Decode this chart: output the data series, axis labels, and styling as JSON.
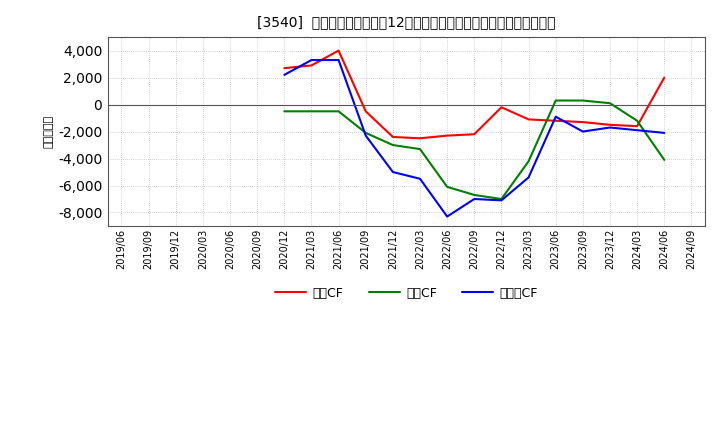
{
  "title": "[3540]  キャッシュフローの12か月移動合計の対前年同期増減額の推移",
  "ylabel": "（百万円）",
  "x_labels": [
    "2019/06",
    "2019/09",
    "2019/12",
    "2020/03",
    "2020/06",
    "2020/09",
    "2020/12",
    "2021/03",
    "2021/06",
    "2021/09",
    "2021/12",
    "2022/03",
    "2022/06",
    "2022/09",
    "2022/12",
    "2023/03",
    "2023/06",
    "2023/09",
    "2023/12",
    "2024/03",
    "2024/06",
    "2024/09"
  ],
  "operating_cf": [
    null,
    null,
    null,
    null,
    null,
    null,
    2700,
    2900,
    4000,
    -500,
    -2400,
    -2500,
    -2300,
    -2200,
    -200,
    -1100,
    -1200,
    -1300,
    -1500,
    -1600,
    2000,
    null
  ],
  "investing_cf": [
    null,
    null,
    null,
    null,
    null,
    null,
    -500,
    -500,
    -500,
    -2100,
    -3000,
    -3300,
    -6100,
    -6700,
    -7000,
    -4200,
    300,
    300,
    100,
    -1200,
    -4100,
    null
  ],
  "free_cf": [
    null,
    null,
    null,
    null,
    null,
    null,
    2200,
    3300,
    3300,
    -2300,
    -5000,
    -5500,
    -8300,
    -7000,
    -7100,
    -5400,
    -900,
    -2000,
    -1700,
    -1900,
    -2100,
    null
  ],
  "colors": {
    "operating": "#ff0000",
    "investing": "#008000",
    "free": "#0000ff"
  },
  "ylim": [
    -9000,
    5000
  ],
  "yticks": [
    -8000,
    -6000,
    -4000,
    -2000,
    0,
    2000,
    4000
  ],
  "background": "#ffffff",
  "grid_color": "#aaaaaa",
  "legend_labels": [
    "営業CF",
    "投資CF",
    "フリーCF"
  ]
}
